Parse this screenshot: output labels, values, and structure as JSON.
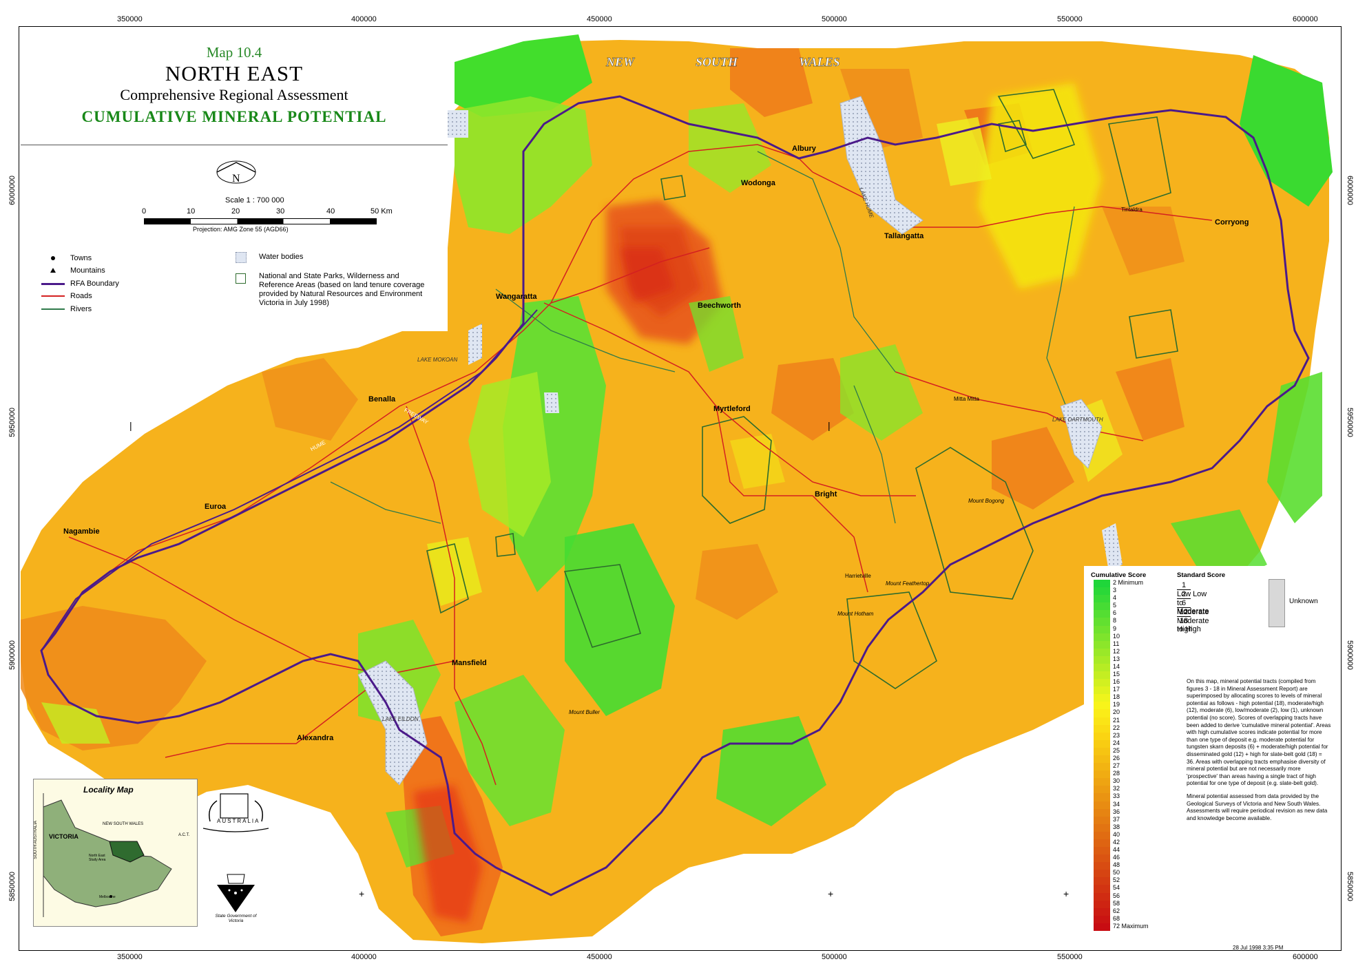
{
  "title": {
    "map_number": "Map 10.4",
    "region": "NORTH EAST",
    "subtitle": "Comprehensive Regional Assessment",
    "theme": "CUMULATIVE MINERAL POTENTIAL"
  },
  "north_label": "N",
  "scale": {
    "text": "Scale 1 : 700 000",
    "ticks": [
      "0",
      "10",
      "20",
      "30",
      "40",
      "50 Km"
    ],
    "projection": "Projection: AMG Zone 55 (AGD66)"
  },
  "legend": {
    "towns": "Towns",
    "mountains": "Mountains",
    "rfa": "RFA Boundary",
    "roads": "Roads",
    "rivers": "Rivers",
    "water": "Water bodies",
    "parks": "National and State Parks, Wilderness and Reference Areas (based on land tenure coverage provided by Natural Resources and Environment Victoria in July 1998)"
  },
  "grid": {
    "eastings": [
      "350000",
      "400000",
      "450000",
      "500000",
      "550000",
      "600000"
    ],
    "northings": [
      "6000000",
      "5950000",
      "5900000",
      "5850000"
    ]
  },
  "nsw_words": [
    "NEW",
    "SOUTH",
    "WALES"
  ],
  "towns": [
    "Albury",
    "Wodonga",
    "Tallangatta",
    "Corryong",
    "Wangaratta",
    "Beechworth",
    "Benalla",
    "Myrtleford",
    "Bright",
    "Euroa",
    "Nagambie",
    "Mansfield",
    "Alexandra",
    "Mitta Mitta",
    "Harrietville",
    "Tintaldra"
  ],
  "mountains": [
    "Mount Bogong",
    "Mount Feathertop",
    "Mount Hotham",
    "Mount Buller"
  ],
  "lakes": [
    "LAKE HUME",
    "LAKE MOKOAN",
    "LAKE DARTMOUTH",
    "LAKE EILDON"
  ],
  "roads": [
    "HUME",
    "FREEWAY"
  ],
  "cumulative": {
    "header": "Cumulative Score",
    "scores": [
      "2 Minimum",
      "3",
      "4",
      "5",
      "6",
      "8",
      "9",
      "10",
      "11",
      "12",
      "13",
      "14",
      "15",
      "16",
      "17",
      "18",
      "19",
      "20",
      "21",
      "22",
      "23",
      "24",
      "25",
      "26",
      "27",
      "28",
      "30",
      "32",
      "33",
      "34",
      "36",
      "37",
      "38",
      "40",
      "42",
      "44",
      "46",
      "48",
      "50",
      "52",
      "54",
      "56",
      "58",
      "62",
      "68",
      "72 Maximum"
    ],
    "colors": [
      "#1fd63a",
      "#2ad838",
      "#38da36",
      "#46dc34",
      "#54de32",
      "#62e030",
      "#70e22e",
      "#7ee42c",
      "#8ce62a",
      "#9ae828",
      "#a8ea26",
      "#b6ec24",
      "#c4ee22",
      "#d2f020",
      "#e0f21e",
      "#eef41c",
      "#f8f41a",
      "#faec18",
      "#fae416",
      "#fadc14",
      "#fad412",
      "#f8cc12",
      "#f6c412",
      "#f4bc12",
      "#f2b412",
      "#f0ac12",
      "#eea412",
      "#ec9c12",
      "#ea9412",
      "#e88c12",
      "#e68412",
      "#e47c12",
      "#e27412",
      "#e06c12",
      "#de6412",
      "#dc5c12",
      "#da5412",
      "#d84c12",
      "#d64412",
      "#d43c12",
      "#d23412",
      "#d02c12",
      "#ce2412",
      "#cc1c12",
      "#ca1412",
      "#c80c12"
    ]
  },
  "standard": {
    "header": "Standard Score",
    "items": [
      {
        "num": "1",
        "label": "Low"
      },
      {
        "num": "2",
        "label": "Low to Moderate"
      },
      {
        "num": "6",
        "label": "Moderate"
      },
      {
        "num": "12",
        "label": "Moderate to High"
      },
      {
        "num": "18",
        "label": "High"
      }
    ],
    "unknown": "Unknown"
  },
  "note1": "On this map, mineral potential tracts (compiled from figures 3 - 18 in Mineral Assessment Report) are superimposed by allocating scores to levels of mineral potential as follows - high potential (18), moderate/high (12), moderate (6), low/moderate (2), low (1), unknown potential (no score). Scores of overlapping tracts have been added to derive 'cumulative mineral potential'. Areas with high cumulative scores indicate potential for more than one type of deposit e.g. moderate potential for tungsten skarn deposits (6) + moderate/high potential for disseminated gold (12) + high for slate-belt gold (18) = 36. Areas with overlapping tracts emphasise diversity of mineral potential but are not necessarily more 'prospective' than areas having a single tract of high potential for one type of deposit (e.g. slate-belt gold).",
  "note2": "Mineral potential assessed from data provided by the Geological Surveys of Victoria and New South Wales. Assessments will require periodical revision as new data and knowledge become available.",
  "locality": {
    "title": "Locality Map",
    "nsw": "NEW SOUTH WALES",
    "victoria": "VICTORIA",
    "sa": "SOUTH AUSTRALIA",
    "act": "A.C.T.",
    "study": "North East Study Area",
    "melbourne": "Melbourne"
  },
  "crest": {
    "country": "AUSTRALIA",
    "state": "State Government of Victoria"
  },
  "footer_date": "28 Jul 1998  3:35 PM",
  "colors": {
    "boundary": "#4b1a8a",
    "road": "#d42020",
    "river": "#2f7a4a",
    "park_outline": "#2d6b2d",
    "water": "#cfd8e8"
  }
}
